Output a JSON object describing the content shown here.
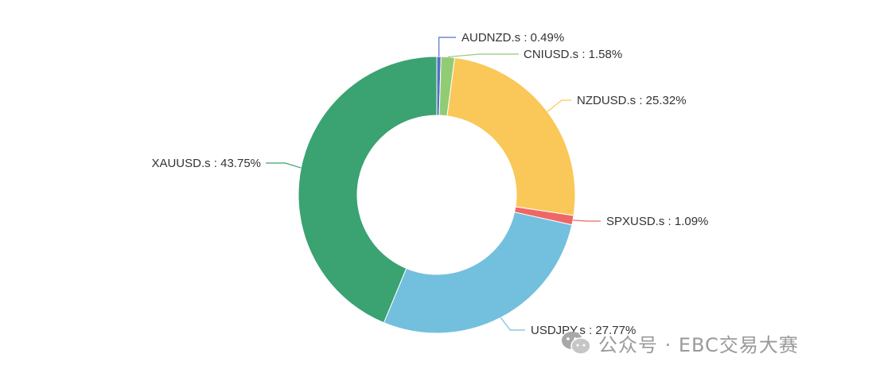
{
  "chart_data": {
    "type": "pie",
    "variant": "donut",
    "title": "",
    "legend": "none",
    "slices": [
      {
        "name": "AUDNZD.s",
        "percent_label": "0.49%",
        "value": 0.49,
        "color": "#5470c6",
        "label_side": "right"
      },
      {
        "name": "CNIUSD.s",
        "percent_label": "1.58%",
        "value": 1.58,
        "color": "#91cc75",
        "label_side": "right"
      },
      {
        "name": "NZDUSD.s",
        "percent_label": "25.32%",
        "value": 25.32,
        "color": "#fac858",
        "label_side": "right"
      },
      {
        "name": "SPXUSD.s",
        "percent_label": "1.09%",
        "value": 1.09,
        "color": "#ee6666",
        "label_side": "right"
      },
      {
        "name": "USDJPY.s",
        "percent_label": "27.77%",
        "value": 27.77,
        "color": "#73c0de",
        "label_side": "right"
      },
      {
        "name": "XAUUSD.s",
        "percent_label": "43.75%",
        "value": 43.75,
        "color": "#3ba272",
        "label_side": "left"
      }
    ]
  },
  "watermark": {
    "text": "公众号 · EBC交易大赛",
    "logo_icon": "wechat-icon"
  }
}
